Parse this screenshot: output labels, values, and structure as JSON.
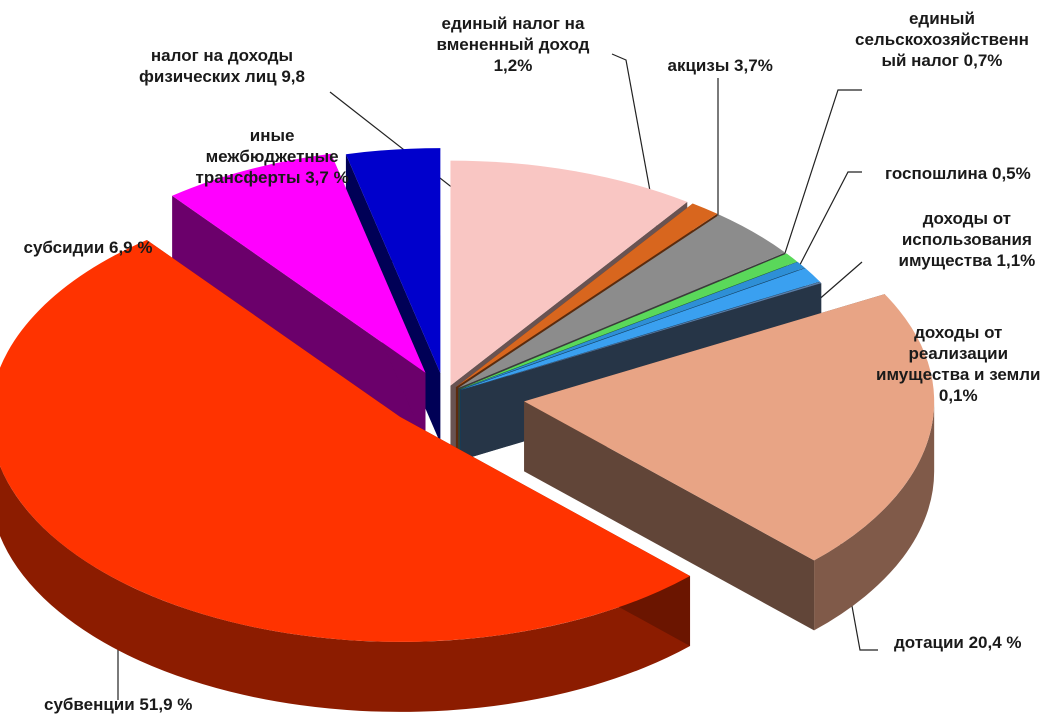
{
  "chart_data": {
    "type": "pie",
    "style": "3d-exploded",
    "slices": [
      {
        "category": "налог на доходы физических лиц",
        "value": 9.8,
        "color": "#f9c6c3",
        "label_lines": [
          "налог на доходы",
          "физических лиц  9,8"
        ]
      },
      {
        "category": "единый налог на вмененный доход",
        "value": 1.2,
        "color": "#d8661e",
        "label_lines": [
          "единый налог на",
          "вмененный доход",
          "1,2%"
        ]
      },
      {
        "category": "акцизы",
        "value": 3.7,
        "color": "#8c8c8c",
        "label_lines": [
          "акцизы 3,7%"
        ]
      },
      {
        "category": "единый сельскохозяйственный налог",
        "value": 0.7,
        "color": "#5ad85a",
        "label_lines": [
          "единый",
          "сельскохозяйственн",
          "ый налог  0,7%"
        ]
      },
      {
        "category": "госпошлина",
        "value": 0.5,
        "color": "#2e8fd6",
        "label_lines": [
          "госпошлина 0,5%"
        ]
      },
      {
        "category": "доходы от использования имущества",
        "value": 1.1,
        "color": "#3aa0f0",
        "label_lines": [
          "доходы от",
          "использования",
          "имущества 1,1%"
        ]
      },
      {
        "category": "доходы от реализации имущества и земли",
        "value": 0.1,
        "color": "#5a7ea8",
        "label_lines": [
          "доходы от",
          "реализации",
          "имущества и земли",
          "0,1%"
        ]
      },
      {
        "category": "дотации",
        "value": 20.4,
        "color": "#e8a485",
        "label_lines": [
          "дотации 20,4 %"
        ]
      },
      {
        "category": "субвенции",
        "value": 51.9,
        "color": "#ff3300",
        "label_lines": [
          "субвенции 51,9 %"
        ]
      },
      {
        "category": "субсидии",
        "value": 6.9,
        "color": "#ff00ff",
        "label_lines": [
          "субсидии 6,9 %"
        ]
      },
      {
        "category": "иные межбюджетные трансферты",
        "value": 3.7,
        "color": "#0000cc",
        "label_lines": [
          "иные",
          "межбюджетные",
          "трансферты 3,7 %"
        ]
      }
    ]
  }
}
